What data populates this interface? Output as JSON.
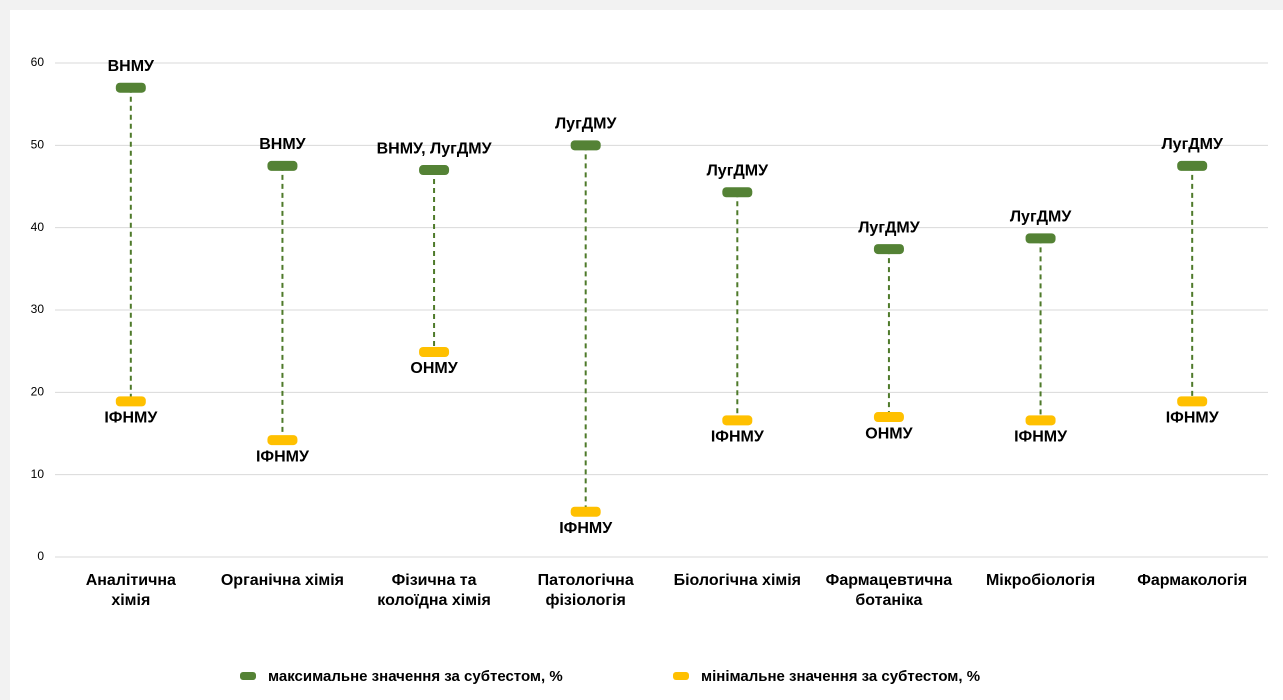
{
  "chart_data": {
    "type": "dumbbell",
    "categories": [
      "Аналітична\nхімія",
      "Органічна хімія",
      "Фізична та\nколоїдна хімія",
      "Патологічна\nфізіологія",
      "Біологічна хімія",
      "Фармацевтична\nботаніка",
      "Мікробіологія",
      "Фармакологія"
    ],
    "series": [
      {
        "name": "максимальне значення за субтестом, %",
        "color": "#548235",
        "position": "above",
        "values": [
          57,
          47.5,
          47,
          50,
          44.3,
          37.4,
          38.7,
          47.5
        ],
        "labels": [
          "ВНМУ",
          "ВНМУ",
          "ВНМУ, ЛугДМУ",
          "ЛугДМУ",
          "ЛугДМУ",
          "ЛугДМУ",
          "ЛугДМУ",
          "ЛугДМУ"
        ]
      },
      {
        "name": "мінімальне значення за субтестом, %",
        "color": "#ffc000",
        "position": "below",
        "values": [
          18.9,
          14.2,
          24.9,
          5.5,
          16.6,
          17,
          16.6,
          18.9
        ],
        "labels": [
          "ІФНМУ",
          "ІФНМУ",
          "ОНМУ",
          "ІФНМУ",
          "ІФНМУ",
          "ОНМУ",
          "ІФНМУ",
          "ІФНМУ"
        ]
      }
    ],
    "connector_color": "#4e7a2a",
    "ylim": [
      0,
      60
    ],
    "yticks": [
      0,
      10,
      20,
      30,
      40,
      50,
      60
    ],
    "grid": true,
    "legend": "bottom"
  }
}
